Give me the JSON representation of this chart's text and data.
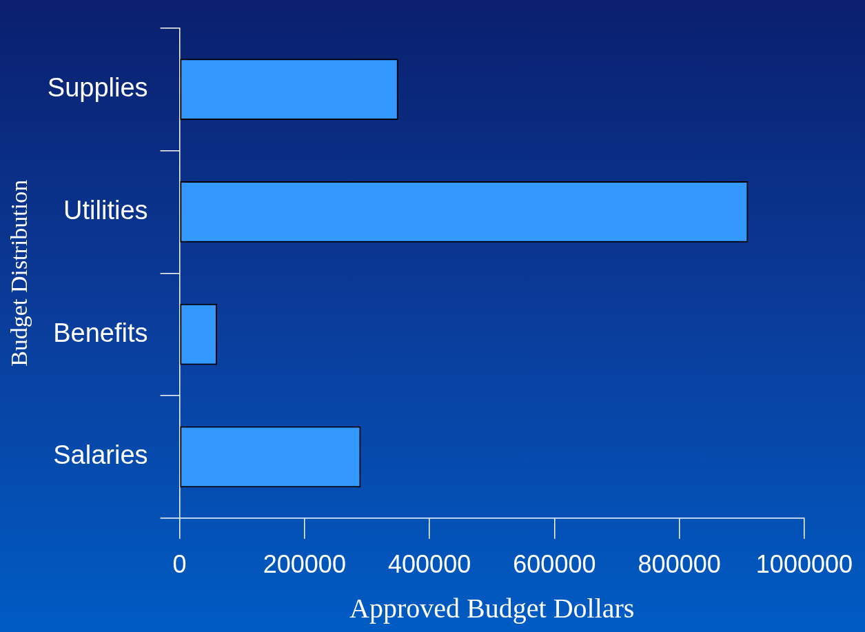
{
  "chart_data": {
    "type": "bar",
    "orientation": "horizontal",
    "categories": [
      "Supplies",
      "Utilities",
      "Benefits",
      "Salaries"
    ],
    "values": [
      350000,
      910000,
      60000,
      290000
    ],
    "color": "#3399ff",
    "xlabel": "Approved Budget Dollars",
    "ylabel": "Budget Distribution",
    "xlim": [
      0,
      1000000
    ],
    "xticks": [
      0,
      200000,
      400000,
      600000,
      800000,
      1000000
    ],
    "grid": false,
    "legend": false
  }
}
